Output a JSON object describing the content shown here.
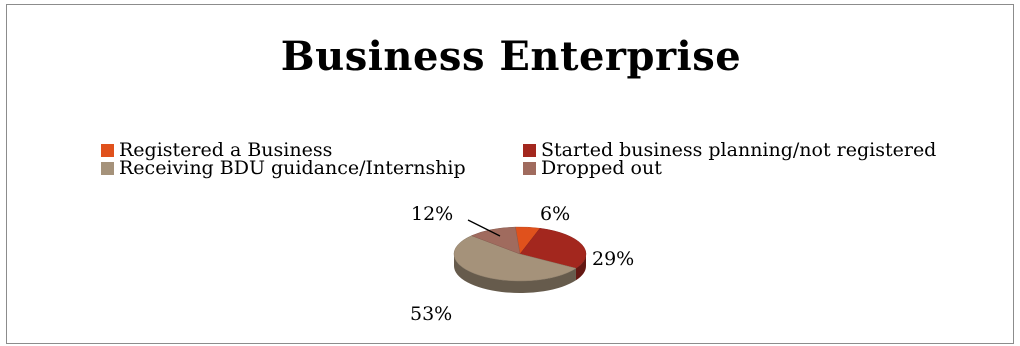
{
  "chart_data": {
    "type": "pie",
    "title": "Business Enterprise",
    "legend_position": "top",
    "slices": [
      {
        "label": "Registered a Business",
        "value": 6,
        "value_label": "6%",
        "color": "#e0511c"
      },
      {
        "label": "Started business planning/not registered",
        "value": 29,
        "value_label": "29%",
        "color": "#a3271e"
      },
      {
        "label": "Receiving BDU guidance/Internship",
        "value": 53,
        "value_label": "53%",
        "color": "#a5927a"
      },
      {
        "label": "Dropped out",
        "value": 12,
        "value_label": "12%",
        "color": "#a06b5e"
      }
    ]
  }
}
